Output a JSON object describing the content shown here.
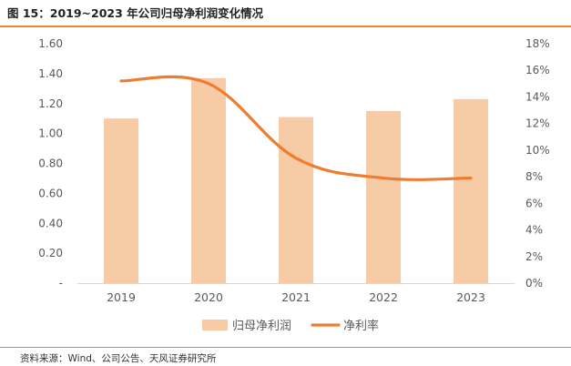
{
  "figure": {
    "title": "图 15：2019~2023 年公司归母净利润变化情况",
    "source": "资料来源：Wind、公司公告、天风证券研究所"
  },
  "colors": {
    "accent": "#e8872c",
    "bar": "#f8cba7",
    "line": "#ed7d31",
    "axis_text": "#595959",
    "axis_line": "#d9d9d9",
    "title_text": "#222222"
  },
  "chart_data": {
    "type": "bar",
    "title": "",
    "categories": [
      "2019",
      "2020",
      "2021",
      "2022",
      "2023"
    ],
    "series": [
      {
        "name": "归母净利润",
        "type": "bar",
        "axis": "left",
        "values": [
          1.1,
          1.37,
          1.11,
          1.15,
          1.23
        ]
      },
      {
        "name": "净利率",
        "type": "line",
        "axis": "right",
        "values": [
          15.2,
          15.0,
          9.4,
          7.9,
          7.9
        ]
      }
    ],
    "y_left": {
      "ylim": [
        0,
        1.6
      ],
      "ticks": [
        0,
        0.2,
        0.4,
        0.6,
        0.8,
        1.0,
        1.2,
        1.4,
        1.6
      ],
      "tick_labels": [
        "-",
        "0.20",
        "0.40",
        "0.60",
        "0.80",
        "1.00",
        "1.20",
        "1.40",
        "1.60"
      ]
    },
    "y_right": {
      "ylim": [
        0,
        18
      ],
      "ticks": [
        0,
        2,
        4,
        6,
        8,
        10,
        12,
        14,
        16,
        18
      ],
      "tick_labels": [
        "0%",
        "2%",
        "4%",
        "6%",
        "8%",
        "10%",
        "12%",
        "14%",
        "16%",
        "18%"
      ]
    },
    "grid": false,
    "legend": "bottom-center"
  }
}
